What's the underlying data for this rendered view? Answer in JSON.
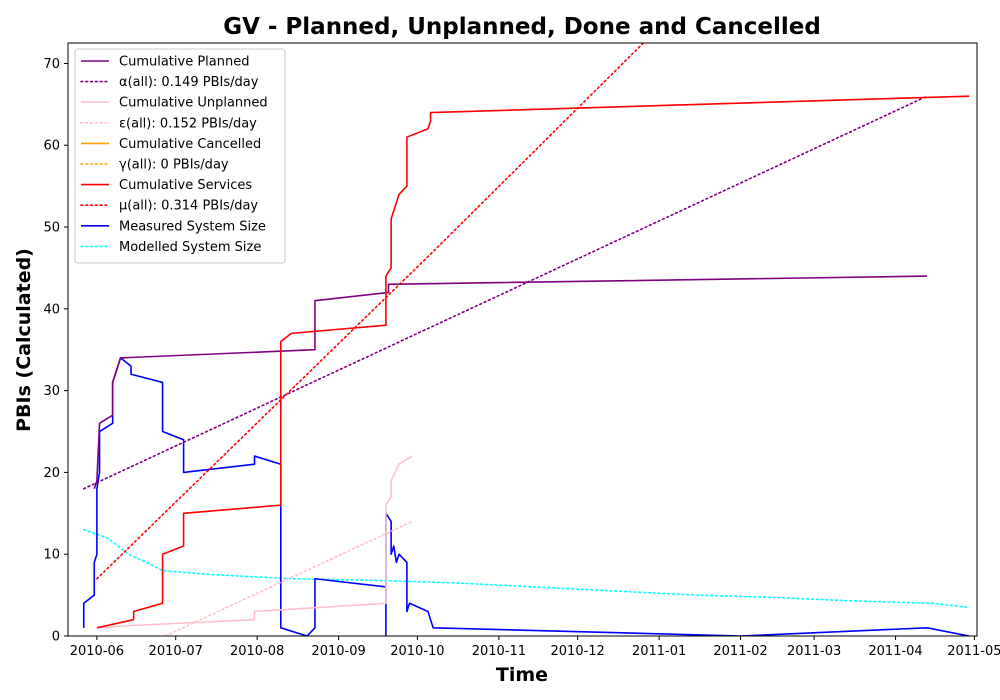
{
  "chart_data": {
    "type": "line",
    "title": "GV - Planned, Unplanned, Done  and Cancelled",
    "xlabel": "Time",
    "ylabel": "PBIs (Calculated)",
    "x_axis": "date",
    "xlim": [
      "2010-05-21",
      "2011-05-02"
    ],
    "ylim": [
      0,
      72.5
    ],
    "x_ticks": [
      "2010-06-01",
      "2010-07-01",
      "2010-08-01",
      "2010-09-01",
      "2010-10-01",
      "2010-11-01",
      "2010-12-01",
      "2011-01-01",
      "2011-02-01",
      "2011-03-01",
      "2011-04-01",
      "2011-05-01"
    ],
    "x_tick_labels": [
      "2010-06",
      "2010-07",
      "2010-08",
      "2010-09",
      "2010-10",
      "2010-11",
      "2010-12",
      "2011-01",
      "2011-02",
      "2011-03",
      "2011-04",
      "2011-05"
    ],
    "y_ticks": [
      0,
      10,
      20,
      30,
      40,
      50,
      60,
      70
    ],
    "y_tick_labels": [
      "0",
      "10",
      "20",
      "30",
      "40",
      "50",
      "60",
      "70"
    ],
    "grid": false,
    "legend_position": "top-left",
    "series": [
      {
        "name": "Cumulative Planned",
        "color": "#800080",
        "style": "solid",
        "points": [
          [
            "2010-05-31",
            18
          ],
          [
            "2010-06-01",
            19
          ],
          [
            "2010-06-02",
            26
          ],
          [
            "2010-06-07",
            27
          ],
          [
            "2010-06-07",
            31
          ],
          [
            "2010-06-10",
            34
          ],
          [
            "2010-08-23",
            35
          ],
          [
            "2010-08-23",
            41
          ],
          [
            "2010-09-20",
            42
          ],
          [
            "2010-09-20",
            43
          ],
          [
            "2011-04-13",
            44
          ]
        ]
      },
      {
        "name": "α(all): 0.149 PBIs/day",
        "color": "#800080",
        "style": "dotted",
        "points": [
          [
            "2010-05-27",
            18
          ],
          [
            "2011-04-13",
            66
          ]
        ]
      },
      {
        "name": "Cumulative Unplanned",
        "color": "#ffc0cb",
        "style": "solid",
        "points": [
          [
            "2010-06-01",
            1
          ],
          [
            "2010-06-15",
            1.3
          ],
          [
            "2010-07-31",
            2
          ],
          [
            "2010-07-31",
            3
          ],
          [
            "2010-09-19",
            4
          ],
          [
            "2010-09-19",
            16
          ],
          [
            "2010-09-21",
            17
          ],
          [
            "2010-09-21",
            19
          ],
          [
            "2010-09-24",
            21
          ],
          [
            "2010-09-29",
            22
          ]
        ]
      },
      {
        "name": "ε(all): 0.152 PBIs/day",
        "color": "#ffc0cb",
        "style": "dotted",
        "points": [
          [
            "2010-06-27",
            0
          ],
          [
            "2010-09-29",
            14
          ]
        ]
      },
      {
        "name": "Cumulative Cancelled",
        "color": "#ffa500",
        "style": "solid",
        "points": []
      },
      {
        "name": "γ(all): 0 PBIs/day",
        "color": "#ffa500",
        "style": "dotted",
        "points": []
      },
      {
        "name": "Cumulative Services",
        "color": "#ff0000",
        "style": "solid",
        "points": [
          [
            "2010-06-01",
            1
          ],
          [
            "2010-06-15",
            2
          ],
          [
            "2010-06-15",
            3
          ],
          [
            "2010-06-26",
            4
          ],
          [
            "2010-06-26",
            10
          ],
          [
            "2010-07-04",
            11
          ],
          [
            "2010-07-04",
            15
          ],
          [
            "2010-08-10",
            16
          ],
          [
            "2010-08-10",
            36
          ],
          [
            "2010-08-14",
            37
          ],
          [
            "2010-09-19",
            38
          ],
          [
            "2010-09-19",
            44
          ],
          [
            "2010-09-21",
            45
          ],
          [
            "2010-09-21",
            51
          ],
          [
            "2010-09-23",
            53
          ],
          [
            "2010-09-24",
            54
          ],
          [
            "2010-09-27",
            55
          ],
          [
            "2010-09-27",
            61
          ],
          [
            "2010-10-05",
            62
          ],
          [
            "2010-10-06",
            63
          ],
          [
            "2010-10-06",
            64
          ],
          [
            "2011-04-29",
            66
          ]
        ]
      },
      {
        "name": "μ(all): 0.314 PBIs/day",
        "color": "#ff0000",
        "style": "dotted",
        "points": [
          [
            "2010-06-01",
            7
          ],
          [
            "2010-10-07",
            47
          ],
          [
            "2010-12-26",
            72.5
          ]
        ]
      },
      {
        "name": "Measured System Size",
        "color": "#0000ff",
        "style": "solid",
        "points": [
          [
            "2010-05-27",
            1
          ],
          [
            "2010-05-27",
            4
          ],
          [
            "2010-05-31",
            5
          ],
          [
            "2010-05-31",
            9
          ],
          [
            "2010-06-01",
            10
          ],
          [
            "2010-06-01",
            18
          ],
          [
            "2010-06-02",
            20
          ],
          [
            "2010-06-02",
            25
          ],
          [
            "2010-06-07",
            26
          ],
          [
            "2010-06-07",
            31
          ],
          [
            "2010-06-10",
            34
          ],
          [
            "2010-06-14",
            33
          ],
          [
            "2010-06-14",
            32
          ],
          [
            "2010-06-26",
            31
          ],
          [
            "2010-06-26",
            25
          ],
          [
            "2010-07-04",
            24
          ],
          [
            "2010-07-04",
            20
          ],
          [
            "2010-07-31",
            21
          ],
          [
            "2010-07-31",
            22
          ],
          [
            "2010-08-10",
            21
          ],
          [
            "2010-08-10",
            1
          ],
          [
            "2010-08-20",
            0
          ],
          [
            "2010-08-23",
            1
          ],
          [
            "2010-08-23",
            7
          ],
          [
            "2010-09-19",
            6
          ],
          [
            "2010-09-19",
            0
          ],
          [
            "2010-09-19",
            15
          ],
          [
            "2010-09-21",
            14
          ],
          [
            "2010-09-21",
            10
          ],
          [
            "2010-09-22",
            11
          ],
          [
            "2010-09-23",
            9
          ],
          [
            "2010-09-24",
            10
          ],
          [
            "2010-09-27",
            9
          ],
          [
            "2010-09-27",
            3
          ],
          [
            "2010-09-28",
            4
          ],
          [
            "2010-10-05",
            3
          ],
          [
            "2010-10-07",
            1
          ],
          [
            "2011-02-01",
            0
          ],
          [
            "2011-04-13",
            1
          ],
          [
            "2011-04-29",
            0
          ]
        ]
      },
      {
        "name": "Modelled System Size",
        "color": "#00ffff",
        "style": "dotted",
        "points": [
          [
            "2010-05-27",
            13
          ],
          [
            "2010-06-05",
            12
          ],
          [
            "2010-06-13",
            10
          ],
          [
            "2010-06-20",
            9
          ],
          [
            "2010-06-26",
            8
          ],
          [
            "2010-07-15",
            7.5
          ],
          [
            "2010-08-15",
            7
          ],
          [
            "2010-09-15",
            6.8
          ],
          [
            "2010-10-15",
            6.5
          ],
          [
            "2010-11-15",
            6
          ],
          [
            "2010-12-15",
            5.5
          ],
          [
            "2011-01-15",
            5
          ],
          [
            "2011-02-15",
            4.7
          ],
          [
            "2011-03-15",
            4.3
          ],
          [
            "2011-04-15",
            4
          ],
          [
            "2011-04-29",
            3.5
          ]
        ]
      }
    ]
  }
}
